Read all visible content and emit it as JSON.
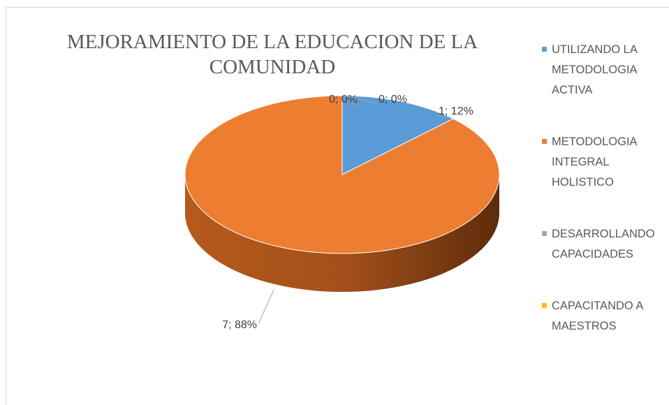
{
  "chart_data": {
    "type": "pie",
    "title": "MEJORAMIENTO DE LA EDUCACION DE LA COMUNIDAD",
    "categories": [
      "UTILIZANDO LA METODOLOGIA ACTIVA",
      "METODOLOGIA INTEGRAL HOLISTICO",
      "DESARROLLANDO CAPACIDADES",
      "CAPACITANDO A MAESTROS"
    ],
    "values": [
      1,
      7,
      0,
      0
    ],
    "value_labels": [
      "1; 12%",
      "7; 88%",
      "0; 0%",
      "0; 0%"
    ],
    "colors": [
      "#5b9bd5",
      "#ed7d31",
      "#a5a5a5",
      "#ffc000"
    ],
    "legend": "right"
  }
}
